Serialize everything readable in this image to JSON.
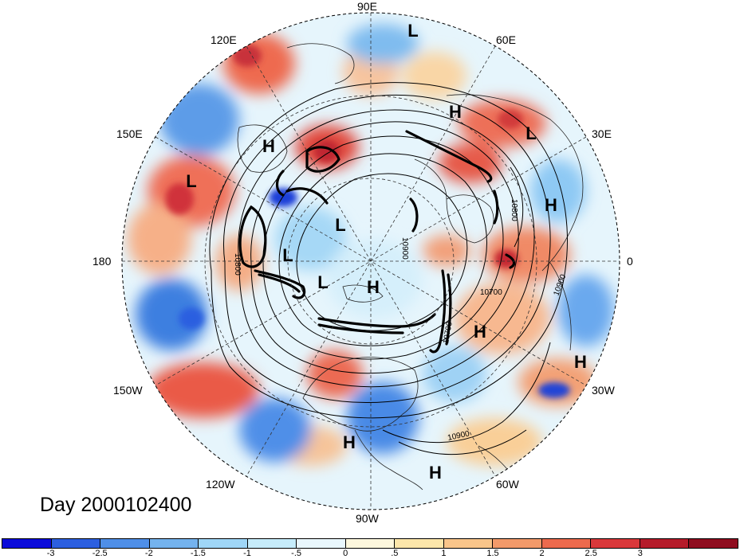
{
  "title": "Day 2000102400",
  "longitude_labels": {
    "lon_90e": "90E",
    "lon_60e": "60E",
    "lon_30e": "30E",
    "lon_0": "0",
    "lon_30w": "30W",
    "lon_60w": "60W",
    "lon_90w": "90W",
    "lon_120w": "120W",
    "lon_150w": "150W",
    "lon_180": "180",
    "lon_150e": "150E",
    "lon_120e": "120E"
  },
  "pressure_centers": [
    {
      "label": "L"
    },
    {
      "label": "H"
    },
    {
      "label": "H"
    },
    {
      "label": "L"
    },
    {
      "label": "L"
    },
    {
      "label": "H"
    },
    {
      "label": "L"
    },
    {
      "label": "L"
    },
    {
      "label": "L"
    },
    {
      "label": "H"
    },
    {
      "label": "H"
    },
    {
      "label": "H"
    },
    {
      "label": "H"
    },
    {
      "label": "H"
    }
  ],
  "contour_labels": [
    "10800",
    "10900",
    "10800",
    "10700",
    "10900",
    "10700",
    "10900"
  ],
  "colorbar": {
    "colors": [
      "#0b0bd9",
      "#2c5fe0",
      "#4f8fe8",
      "#74b3ee",
      "#9fd6f7",
      "#c6ecfb",
      "#e9f7fd",
      "#fdf7dd",
      "#fce6aa",
      "#f9c58a",
      "#f39a6a",
      "#ed6a4d",
      "#d9383a",
      "#b51b2a",
      "#8f0d1f"
    ],
    "labels": [
      "-3",
      "-2.5",
      "-2",
      "-1.5",
      "-1",
      "-.5",
      "0",
      ".5",
      "1",
      "1.5",
      "2",
      "2.5",
      "3"
    ]
  }
}
